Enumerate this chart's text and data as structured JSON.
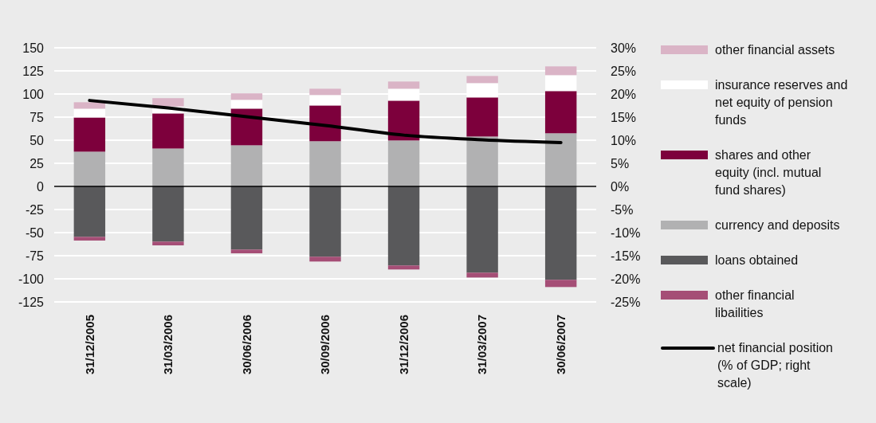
{
  "chart_data": {
    "type": "bar",
    "stacked": true,
    "categories": [
      "31/12/2005",
      "31/03/2006",
      "30/06/2006",
      "30/09/2006",
      "31/12/2006",
      "31/03/2007",
      "30/06/2007"
    ],
    "series": [
      {
        "name": "currency and deposits",
        "color": "#b1b1b2",
        "values": [
          37.6,
          41,
          44.5,
          48.9,
          49.7,
          54,
          57.5
        ]
      },
      {
        "name": "shares and other equity (incl. mutual fund shares)",
        "color": "#7d003c",
        "values": [
          37,
          38,
          39.7,
          38.7,
          43.1,
          42.3,
          45.7
        ]
      },
      {
        "name": "insurance reserves and net equity of pension funds",
        "color": "#ffffff",
        "values": [
          9.5,
          7.5,
          9.5,
          11.3,
          12.9,
          15.5,
          17.2
        ]
      },
      {
        "name": "other financial assets",
        "color": "#dab4c6",
        "values": [
          7,
          9,
          7,
          6.8,
          7.8,
          7.7,
          9.5
        ]
      },
      {
        "name": "loans obtained",
        "color": "#59595b",
        "values": [
          -54.6,
          -59.8,
          -68.4,
          -76.1,
          -85.6,
          -93.4,
          -101.1
        ]
      },
      {
        "name": "other financial libailities",
        "color": "#a54e76",
        "values": [
          -4,
          -4,
          -4,
          -5.2,
          -4.3,
          -5.2,
          -7.8
        ]
      },
      {
        "name": "net financial position (% of GDP; right scale)",
        "type": "line",
        "axis": "y2",
        "color": "#000000",
        "values": [
          18.6,
          17,
          15.1,
          13.2,
          11.1,
          10.1,
          9.5
        ]
      }
    ],
    "ylim": [
      -125,
      150
    ],
    "yticks": [
      -125,
      -100,
      -75,
      -50,
      -25,
      0,
      25,
      50,
      75,
      100,
      125,
      150
    ],
    "y2lim": [
      -25,
      30
    ],
    "y2ticks": [
      {
        "value": -25,
        "label": "-25%"
      },
      {
        "value": -20,
        "label": "-20%"
      },
      {
        "value": -15,
        "label": "-15%"
      },
      {
        "value": -10,
        "label": "-10%"
      },
      {
        "value": -5,
        "label": "-5%"
      },
      {
        "value": 0,
        "label": "0%"
      },
      {
        "value": 5,
        "label": "5%"
      },
      {
        "value": 10,
        "label": "10%"
      },
      {
        "value": 15,
        "label": "15%"
      },
      {
        "value": 20,
        "label": "20%"
      },
      {
        "value": 25,
        "label": "25%"
      },
      {
        "value": 30,
        "label": "30%"
      }
    ],
    "grid": "y",
    "legend": "right"
  }
}
